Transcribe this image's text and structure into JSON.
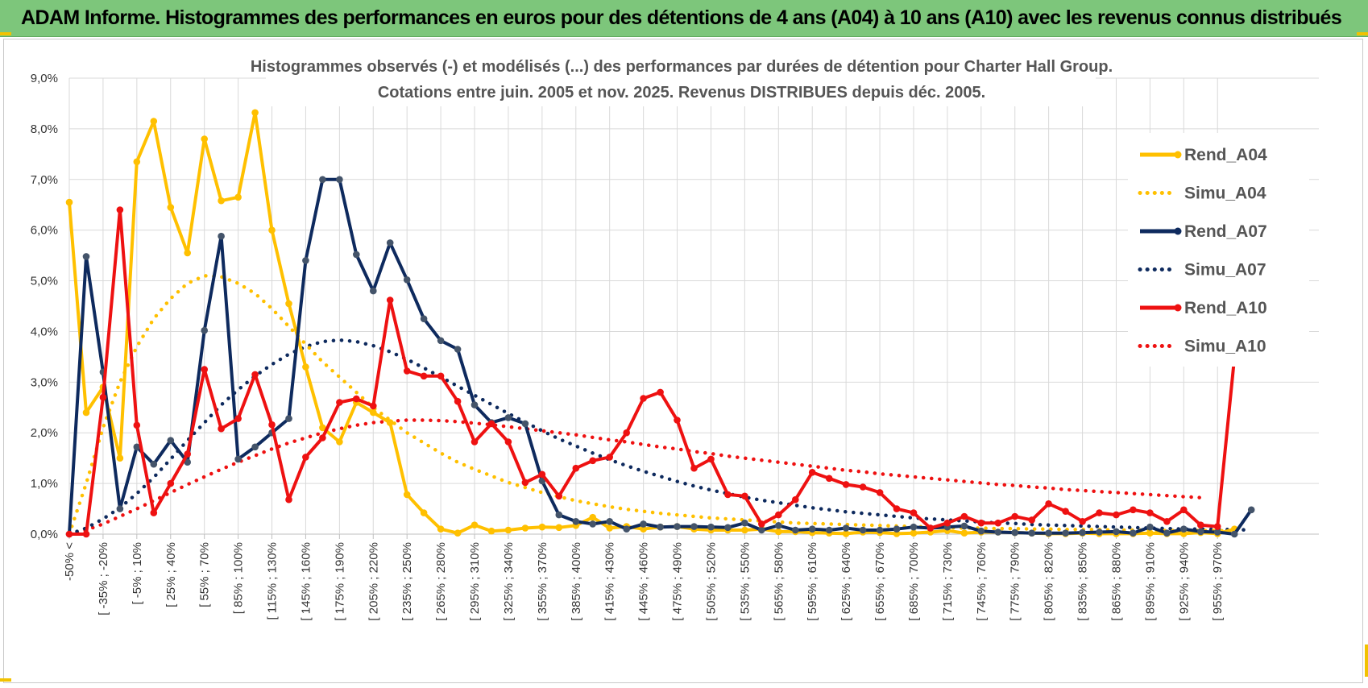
{
  "header": {
    "title": "ADAM Informe. Histogrammes des performances en euros pour des détentions de 4 ans (A04) à 10 ans (A10) avec les revenus connus distribués"
  },
  "colors": {
    "header_bg": "#7dc67b",
    "accent_gold": "#f2c200",
    "A04": "#ffc000",
    "A07": "#0e2a5e",
    "A10": "#ee1111",
    "grid": "#d9d9d9"
  },
  "chart_data": {
    "type": "line",
    "title_lines": [
      "Histogrammes observés (-) et modélisés (...) des performances par durées de détention pour Charter Hall Group.",
      "Cotations entre juin. 2005 et nov. 2025. Revenus DISTRIBUES depuis déc. 2005."
    ],
    "ylim": [
      0,
      9
    ],
    "y_ticks": [
      "0,0%",
      "1,0%",
      "2,0%",
      "3,0%",
      "4,0%",
      "5,0%",
      "6,0%",
      "7,0%",
      "8,0%",
      "9,0%"
    ],
    "x_tick_labels": [
      "-50% <",
      "[ -35% ; -20%",
      "[ -5% ; 10%",
      "[ 25% ; 40%",
      "[ 55% ; 70%",
      "[ 85% ; 100%",
      "[ 115% ; 130%",
      "[ 145% ; 160%",
      "[ 175% ; 190%",
      "[ 205% ; 220%",
      "[ 235% ; 250%",
      "[ 265% ; 280%",
      "[ 295% ; 310%",
      "[ 325% ; 340%",
      "[ 355% ; 370%",
      "[ 385% ; 400%",
      "[ 415% ; 430%",
      "[ 445% ; 460%",
      "[ 475% ; 490%",
      "[ 505% ; 520%",
      "[ 535% ; 550%",
      "[ 565% ; 580%",
      "[ 595% ; 610%",
      "[ 625% ; 640%",
      "[ 655% ; 670%",
      "[ 685% ; 700%",
      "[ 715% ; 730%",
      "[ 745% ; 760%",
      "[ 775% ; 790%",
      "[ 805% ; 820%",
      "[ 835% ; 850%",
      "[ 865% ; 880%",
      "[ 895% ; 910%",
      "[ 925% ; 940%",
      "[ 955% ; 970%"
    ],
    "x_tick_every": 2,
    "series": [
      {
        "name": "Rend_A04",
        "style": "solid",
        "color": "#ffc000",
        "values": [
          6.55,
          2.4,
          2.9,
          1.5,
          7.35,
          8.15,
          6.45,
          5.55,
          7.8,
          6.58,
          6.65,
          8.32,
          6.0,
          4.55,
          3.3,
          2.1,
          1.82,
          2.6,
          2.4,
          2.2,
          0.78,
          0.42,
          0.1,
          0.02,
          0.18,
          0.06,
          0.08,
          0.12,
          0.14,
          0.13,
          0.17,
          0.33,
          0.12,
          0.15,
          0.1,
          0.14,
          0.15,
          0.1,
          0.08,
          0.08,
          0.08,
          0.1,
          0.05,
          0.05,
          0.03,
          0.02,
          0.01,
          0.04,
          0.03,
          0.01,
          0.02,
          0.04,
          0.07,
          0.02,
          0.04,
          0.04,
          0.03,
          0.02,
          0.01,
          0.01,
          0.02,
          0.01,
          0.01,
          0.01,
          0.02,
          0.01,
          0.01,
          0.03,
          0.01,
          0.1
        ]
      },
      {
        "name": "Simu_A04",
        "style": "dotted",
        "color": "#ffc000",
        "values": [
          0.0,
          1.0,
          2.1,
          3.0,
          3.7,
          4.25,
          4.65,
          4.95,
          5.1,
          5.08,
          4.95,
          4.75,
          4.45,
          4.1,
          3.75,
          3.4,
          3.1,
          2.8,
          2.5,
          2.25,
          2.0,
          1.8,
          1.6,
          1.42,
          1.28,
          1.15,
          1.02,
          0.92,
          0.82,
          0.74,
          0.66,
          0.6,
          0.54,
          0.49,
          0.45,
          0.41,
          0.38,
          0.35,
          0.32,
          0.3,
          0.28,
          0.26,
          0.24,
          0.22,
          0.21,
          0.2,
          0.19,
          0.18,
          0.17,
          0.16,
          0.15,
          0.14,
          0.13,
          0.12,
          0.12,
          0.11,
          0.11,
          0.1,
          0.1,
          0.09,
          0.09,
          0.09,
          0.08,
          0.08,
          0.08,
          0.07,
          0.07,
          0.07,
          0.07,
          0.06
        ]
      },
      {
        "name": "Rend_A07",
        "style": "solid",
        "color": "#0e2a5e",
        "values": [
          0.0,
          5.48,
          3.2,
          0.5,
          1.72,
          1.38,
          1.85,
          1.42,
          4.02,
          5.88,
          1.48,
          1.72,
          2.0,
          2.28,
          5.4,
          7.0,
          7.0,
          5.52,
          4.8,
          5.75,
          5.02,
          4.25,
          3.82,
          3.65,
          2.55,
          2.2,
          2.3,
          2.18,
          1.05,
          0.38,
          0.25,
          0.2,
          0.25,
          0.1,
          0.2,
          0.14,
          0.15,
          0.15,
          0.14,
          0.13,
          0.22,
          0.08,
          0.17,
          0.08,
          0.1,
          0.08,
          0.12,
          0.08,
          0.08,
          0.1,
          0.14,
          0.12,
          0.14,
          0.16,
          0.06,
          0.04,
          0.03,
          0.02,
          0.02,
          0.02,
          0.03,
          0.04,
          0.05,
          0.02,
          0.14,
          0.02,
          0.1,
          0.05,
          0.04,
          0.0,
          0.48
        ]
      },
      {
        "name": "Simu_A07",
        "style": "dotted",
        "color": "#0e2a5e",
        "values": [
          0.0,
          0.12,
          0.3,
          0.52,
          0.8,
          1.12,
          1.48,
          1.85,
          2.2,
          2.55,
          2.85,
          3.12,
          3.35,
          3.55,
          3.7,
          3.8,
          3.83,
          3.8,
          3.72,
          3.6,
          3.45,
          3.28,
          3.1,
          2.92,
          2.74,
          2.56,
          2.38,
          2.21,
          2.04,
          1.88,
          1.74,
          1.6,
          1.47,
          1.35,
          1.24,
          1.14,
          1.04,
          0.95,
          0.87,
          0.8,
          0.73,
          0.67,
          0.62,
          0.57,
          0.52,
          0.48,
          0.44,
          0.41,
          0.38,
          0.35,
          0.32,
          0.3,
          0.28,
          0.26,
          0.24,
          0.22,
          0.21,
          0.19,
          0.18,
          0.17,
          0.16,
          0.15,
          0.14,
          0.13,
          0.12,
          0.11,
          0.1,
          0.1,
          0.09,
          0.09,
          0.08
        ]
      },
      {
        "name": "Rend_A10",
        "style": "solid",
        "color": "#ee1111",
        "values": [
          0.0,
          0.0,
          2.7,
          6.4,
          2.15,
          0.42,
          1.0,
          1.58,
          3.25,
          2.08,
          2.28,
          3.15,
          2.16,
          0.68,
          1.52,
          1.9,
          2.6,
          2.67,
          2.53,
          4.62,
          3.22,
          3.12,
          3.12,
          2.62,
          1.82,
          2.18,
          1.82,
          1.02,
          1.18,
          0.75,
          1.3,
          1.45,
          1.52,
          2.0,
          2.68,
          2.8,
          2.25,
          1.3,
          1.48,
          0.78,
          0.75,
          0.2,
          0.38,
          0.68,
          1.22,
          1.1,
          0.98,
          0.93,
          0.82,
          0.5,
          0.42,
          0.12,
          0.22,
          0.35,
          0.22,
          0.22,
          0.35,
          0.28,
          0.6,
          0.45,
          0.25,
          0.42,
          0.38,
          0.48,
          0.42,
          0.25,
          0.48,
          0.18,
          0.15,
          3.48
        ]
      },
      {
        "name": "Simu_A10",
        "style": "dotted",
        "color": "#ee1111",
        "values": [
          0.0,
          0.08,
          0.2,
          0.35,
          0.5,
          0.66,
          0.82,
          0.98,
          1.13,
          1.28,
          1.42,
          1.55,
          1.68,
          1.8,
          1.9,
          2.0,
          2.08,
          2.15,
          2.2,
          2.23,
          2.25,
          2.25,
          2.24,
          2.22,
          2.19,
          2.16,
          2.12,
          2.08,
          2.04,
          2.0,
          1.96,
          1.91,
          1.86,
          1.82,
          1.77,
          1.72,
          1.68,
          1.63,
          1.59,
          1.54,
          1.5,
          1.46,
          1.42,
          1.38,
          1.34,
          1.3,
          1.26,
          1.23,
          1.19,
          1.16,
          1.13,
          1.1,
          1.07,
          1.04,
          1.01,
          0.98,
          0.96,
          0.93,
          0.91,
          0.88,
          0.86,
          0.84,
          0.82,
          0.8,
          0.78,
          0.76,
          0.74,
          0.72
        ]
      }
    ]
  }
}
